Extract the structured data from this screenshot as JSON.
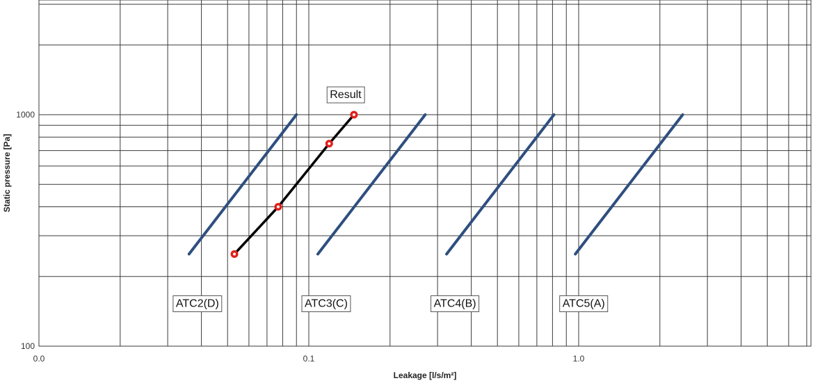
{
  "chart_data": {
    "type": "line",
    "title": "",
    "xlabel": "Leakage [l/s/m²]",
    "ylabel": "Static pressure [Pa]",
    "x_scale": "log",
    "y_scale": "log",
    "xlim": [
      0.01,
      7
    ],
    "ylim": [
      100,
      5000
    ],
    "x_ticks": [
      {
        "value": 0.01,
        "label": "0.0"
      },
      {
        "value": 0.1,
        "label": "0.1"
      },
      {
        "value": 1,
        "label": "1.0"
      }
    ],
    "y_ticks": [
      {
        "value": 100,
        "label": "100"
      },
      {
        "value": 1000,
        "label": "1000"
      }
    ],
    "grid": true,
    "series": [
      {
        "name": "ATC2(D)",
        "color": "#2e4f7f",
        "x": [
          0.036,
          0.09
        ],
        "y": [
          250,
          1000
        ]
      },
      {
        "name": "ATC3(C)",
        "color": "#2e4f7f",
        "x": [
          0.108,
          0.27
        ],
        "y": [
          250,
          1000
        ]
      },
      {
        "name": "ATC4(B)",
        "color": "#2e4f7f",
        "x": [
          0.324,
          0.81
        ],
        "y": [
          250,
          1000
        ]
      },
      {
        "name": "ATC5(A)",
        "color": "#2e4f7f",
        "x": [
          0.972,
          2.43
        ],
        "y": [
          250,
          1000
        ]
      },
      {
        "name": "Result",
        "color": "#000000",
        "marker_color": "#e0201b",
        "x": [
          0.053,
          0.077,
          0.119,
          0.147
        ],
        "y": [
          250,
          400,
          750,
          1000
        ]
      }
    ]
  }
}
